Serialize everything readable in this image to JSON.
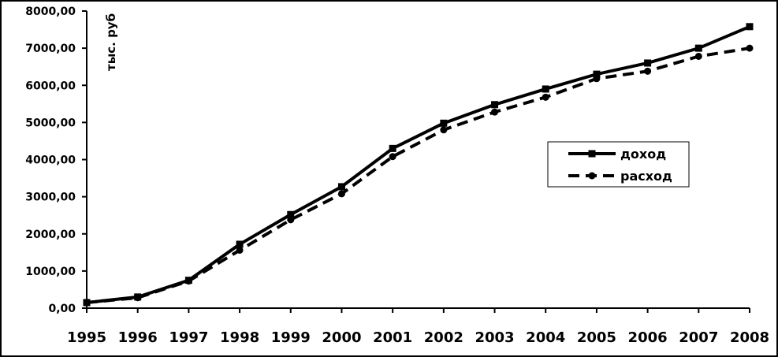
{
  "chart_data": {
    "type": "line",
    "title": "",
    "xlabel": "",
    "ylabel": "тыс. руб",
    "x": [
      1995,
      1996,
      1997,
      1998,
      1999,
      2000,
      2001,
      2002,
      2003,
      2004,
      2005,
      2006,
      2007,
      2008
    ],
    "x_tick_labels": [
      "1995",
      "1996",
      "1997",
      "1998",
      "1999",
      "2000",
      "2001",
      "2002",
      "2003",
      "2004",
      "2005",
      "2006",
      "2007",
      "2008"
    ],
    "y_tick_labels": [
      "0,00",
      "1000,00",
      "2000,00",
      "3000,00",
      "4000,00",
      "5000,00",
      "6000,00",
      "7000,00",
      "8000,00"
    ],
    "ylim": [
      0,
      8000
    ],
    "grid": false,
    "legend_position": "right",
    "series": [
      {
        "name": "доход",
        "style": "solid",
        "marker": "square",
        "color": "#000000",
        "values": [
          150,
          300,
          750,
          1720,
          2520,
          3270,
          4300,
          4980,
          5480,
          5900,
          6300,
          6600,
          7000,
          7580
        ]
      },
      {
        "name": "расход",
        "style": "dashed",
        "marker": "circle",
        "color": "#000000",
        "values": [
          150,
          280,
          730,
          1560,
          2380,
          3080,
          4080,
          4800,
          5280,
          5680,
          6180,
          6380,
          6780,
          7000
        ]
      }
    ]
  }
}
